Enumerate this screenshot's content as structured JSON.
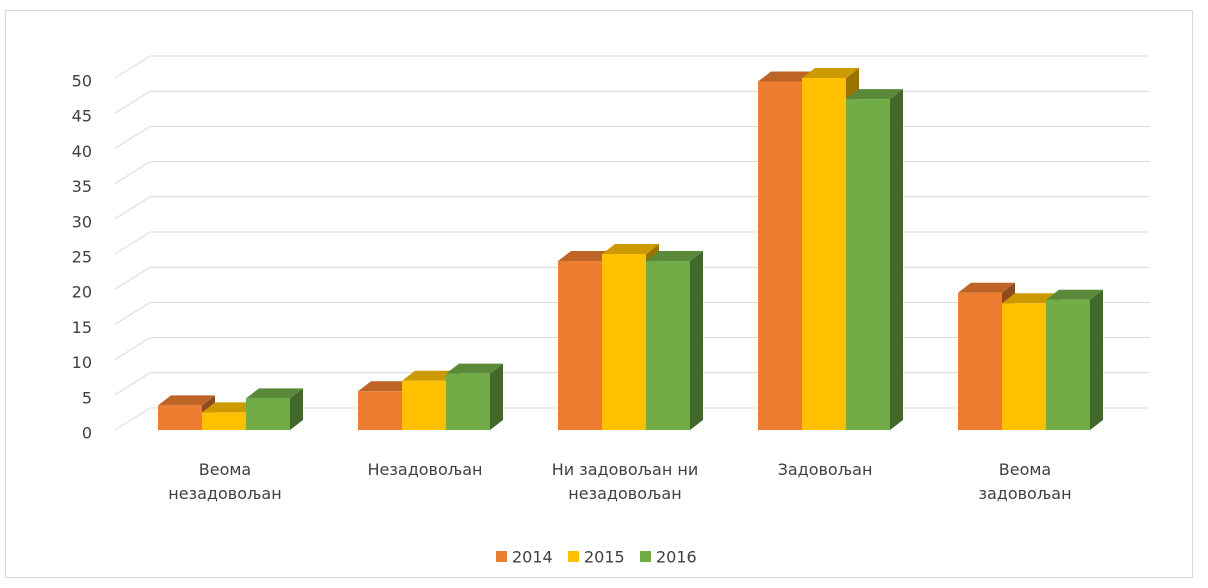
{
  "chart_data": {
    "type": "bar3d",
    "categories": [
      "Веома\nнезадовољан",
      "Незадовољан",
      "Ни задовољан ни\nнезадовољан",
      "Задовољан",
      "Веома\nзадовољан"
    ],
    "series": [
      {
        "name": "2014",
        "color": "#ed7d31",
        "values": [
          3.5,
          5.5,
          24,
          49.5,
          19.5
        ]
      },
      {
        "name": "2015",
        "color": "#ffc000",
        "values": [
          2.5,
          7,
          25,
          50,
          18
        ]
      },
      {
        "name": "2016",
        "color": "#70ad47",
        "values": [
          4.5,
          8,
          24,
          47,
          18.5
        ]
      }
    ],
    "ylim": [
      0,
      50
    ],
    "yticks": [
      0,
      5,
      10,
      15,
      20,
      25,
      30,
      35,
      40,
      45,
      50
    ],
    "grid": true,
    "legend": "bottom"
  }
}
